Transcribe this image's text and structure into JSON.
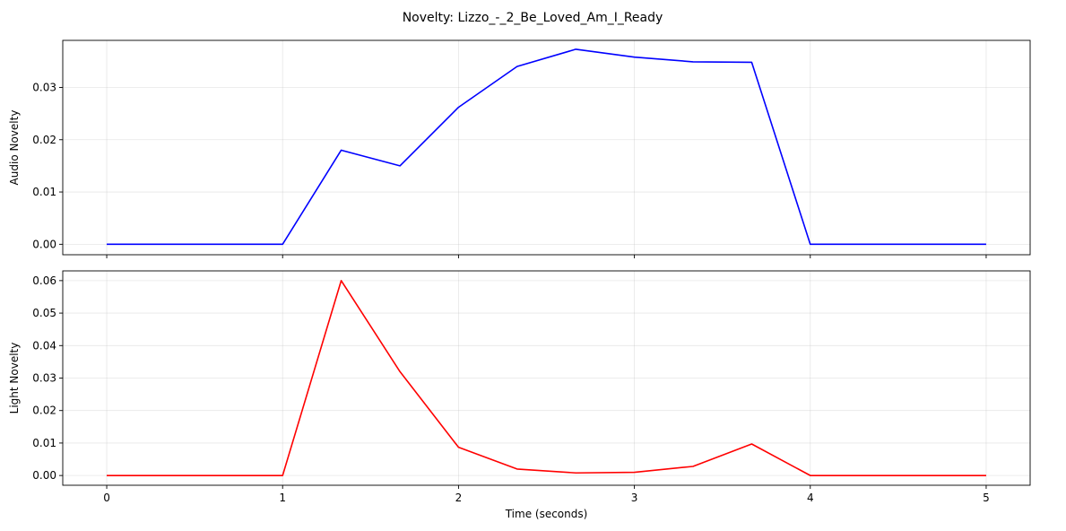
{
  "figure": {
    "title": "Novelty: Lizzo_-_2_Be_Loved_Am_I_Ready"
  },
  "chart_data": [
    {
      "type": "line",
      "ylabel": "Audio Novelty",
      "xlabel": "",
      "xlim": [
        -0.25,
        5.25
      ],
      "ylim": [
        -0.002,
        0.039
      ],
      "xticks": [
        0,
        1,
        2,
        3,
        4,
        5
      ],
      "yticks": [
        0.0,
        0.01,
        0.02,
        0.03
      ],
      "ytick_labels": [
        "0.00",
        "0.01",
        "0.02",
        "0.03"
      ],
      "grid": true,
      "series": [
        {
          "color": "#0000ff",
          "x": [
            0,
            0.333,
            0.667,
            1.0,
            1.333,
            1.667,
            2.0,
            2.333,
            2.667,
            3.0,
            3.333,
            3.667,
            4.0,
            4.333,
            4.667,
            5.0
          ],
          "y": [
            0.0,
            0.0,
            0.0,
            0.0,
            0.018,
            0.015,
            0.0262,
            0.034,
            0.0373,
            0.0358,
            0.0349,
            0.0348,
            0.0,
            0.0,
            0.0,
            0.0
          ]
        }
      ]
    },
    {
      "type": "line",
      "ylabel": "Light Novelty",
      "xlabel": "Time (seconds)",
      "xlim": [
        -0.25,
        5.25
      ],
      "ylim": [
        -0.003,
        0.063
      ],
      "xticks": [
        0,
        1,
        2,
        3,
        4,
        5
      ],
      "xtick_labels": [
        "0",
        "1",
        "2",
        "3",
        "4",
        "5"
      ],
      "yticks": [
        0.0,
        0.01,
        0.02,
        0.03,
        0.04,
        0.05,
        0.06
      ],
      "ytick_labels": [
        "0.00",
        "0.01",
        "0.02",
        "0.03",
        "0.04",
        "0.05",
        "0.06"
      ],
      "grid": true,
      "series": [
        {
          "color": "#ff0000",
          "x": [
            0,
            0.333,
            0.667,
            1.0,
            1.333,
            1.667,
            2.0,
            2.333,
            2.667,
            3.0,
            3.333,
            3.667,
            4.0,
            4.333,
            4.667,
            5.0
          ],
          "y": [
            0.0,
            0.0,
            0.0,
            0.0,
            0.06,
            0.032,
            0.0087,
            0.002,
            0.0008,
            0.001,
            0.0028,
            0.0097,
            0.0,
            0.0,
            0.0,
            0.0
          ]
        }
      ]
    }
  ]
}
